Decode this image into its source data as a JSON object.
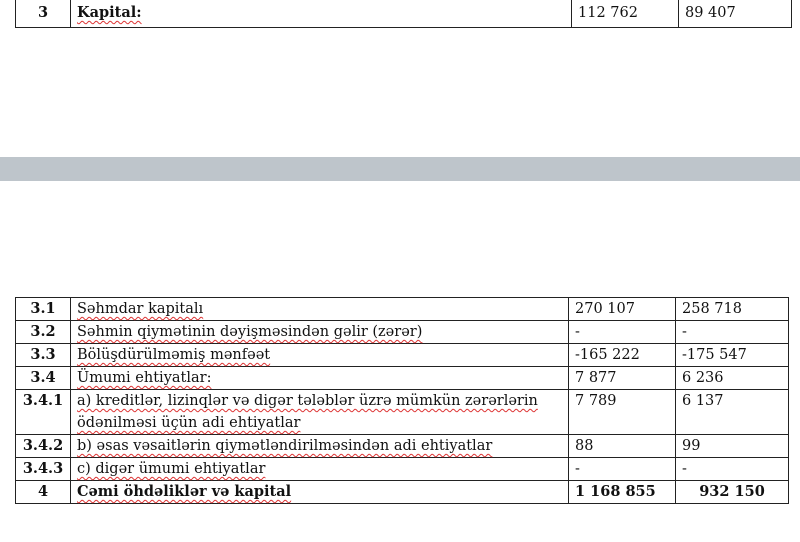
{
  "top_table": {
    "rows": [
      {
        "no": "3",
        "label": "Kapital:",
        "col1": "112 762",
        "col2": "89 407",
        "bold": true
      }
    ]
  },
  "separator_color": "#bec5cb",
  "bottom_table": {
    "rows": [
      {
        "no": "3.1",
        "label": "Səhmdar kapitalı",
        "col1": "270 107",
        "col2": "258 718"
      },
      {
        "no": "3.2",
        "label": "Səhmin qiymətinin dəyişməsindən gəlir (zərər)",
        "col1": "-",
        "col2": "-"
      },
      {
        "no": "3.3",
        "label": "Bölüşdürülməmiş mənfəət",
        "col1": "-165 222",
        "col2": "-175 547"
      },
      {
        "no": "3.4",
        "label": "Ümumi ehtiyatlar:",
        "col1": "7 877",
        "col2": "6 236"
      },
      {
        "no": "3.4.1",
        "label": "a) kreditlər, lizinqlər və digər tələblər üzrə mümkün zərərlərin ödənilməsi üçün adi ehtiyatlar",
        "col1": "7 789",
        "col2": "6 137"
      },
      {
        "no": "3.4.2",
        "label": "b) əsas vəsaitlərin qiymətləndirilməsindən adi ehtiyatlar",
        "col1": "88",
        "col2": "99"
      },
      {
        "no": "3.4.3",
        "label": "c) digər ümumi ehtiyatlar",
        "col1": "-",
        "col2": "-"
      },
      {
        "no": "4",
        "label": "Cəmi öhdəliklər və kapital",
        "col1": "1 168 855",
        "col2": "932 150",
        "bold": true
      }
    ]
  }
}
